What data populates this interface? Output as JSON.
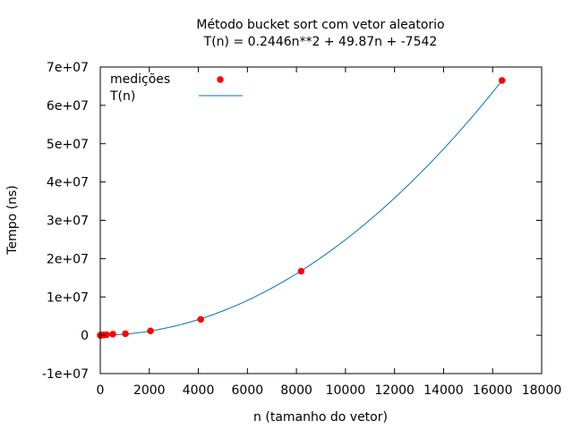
{
  "chart_data": {
    "type": "scatter",
    "title": "Método bucket sort com vetor aleatorio",
    "subtitle": "T(n) = 0.2446n**2 + 49.87n + -7542",
    "xlabel": "n (tamanho do vetor)",
    "ylabel": "Tempo (ns)",
    "xlim": [
      0,
      18000
    ],
    "ylim": [
      -10000000,
      70000000
    ],
    "xticks": [
      0,
      2000,
      4000,
      6000,
      8000,
      10000,
      12000,
      14000,
      16000,
      18000
    ],
    "yticks": [
      -10000000,
      0,
      10000000,
      20000000,
      30000000,
      40000000,
      50000000,
      60000000,
      70000000
    ],
    "xtick_labels": [
      "0",
      "2000",
      "4000",
      "6000",
      "8000",
      "10000",
      "12000",
      "14000",
      "16000",
      "18000"
    ],
    "ytick_labels": [
      "-1e+07",
      "0",
      "1e+07",
      "2e+07",
      "3e+07",
      "4e+07",
      "5e+07",
      "6e+07",
      "7e+07"
    ],
    "grid": false,
    "legend_position": "top-left",
    "series": [
      {
        "name": "medições",
        "kind": "points",
        "color": "#ff0000",
        "x": [
          1,
          2,
          4,
          8,
          16,
          32,
          64,
          128,
          256,
          512,
          1024,
          2048,
          4096,
          8192,
          16384
        ],
        "y": [
          2000,
          3000,
          5000,
          9000,
          15000,
          25000,
          50000,
          90000,
          150000,
          300000,
          400000,
          1150000,
          4150000,
          16700000,
          66500000
        ]
      },
      {
        "name": "T(n)",
        "kind": "line",
        "color": "#0072bd",
        "coefficients": [
          0.2446,
          49.87,
          -7542
        ]
      }
    ]
  }
}
